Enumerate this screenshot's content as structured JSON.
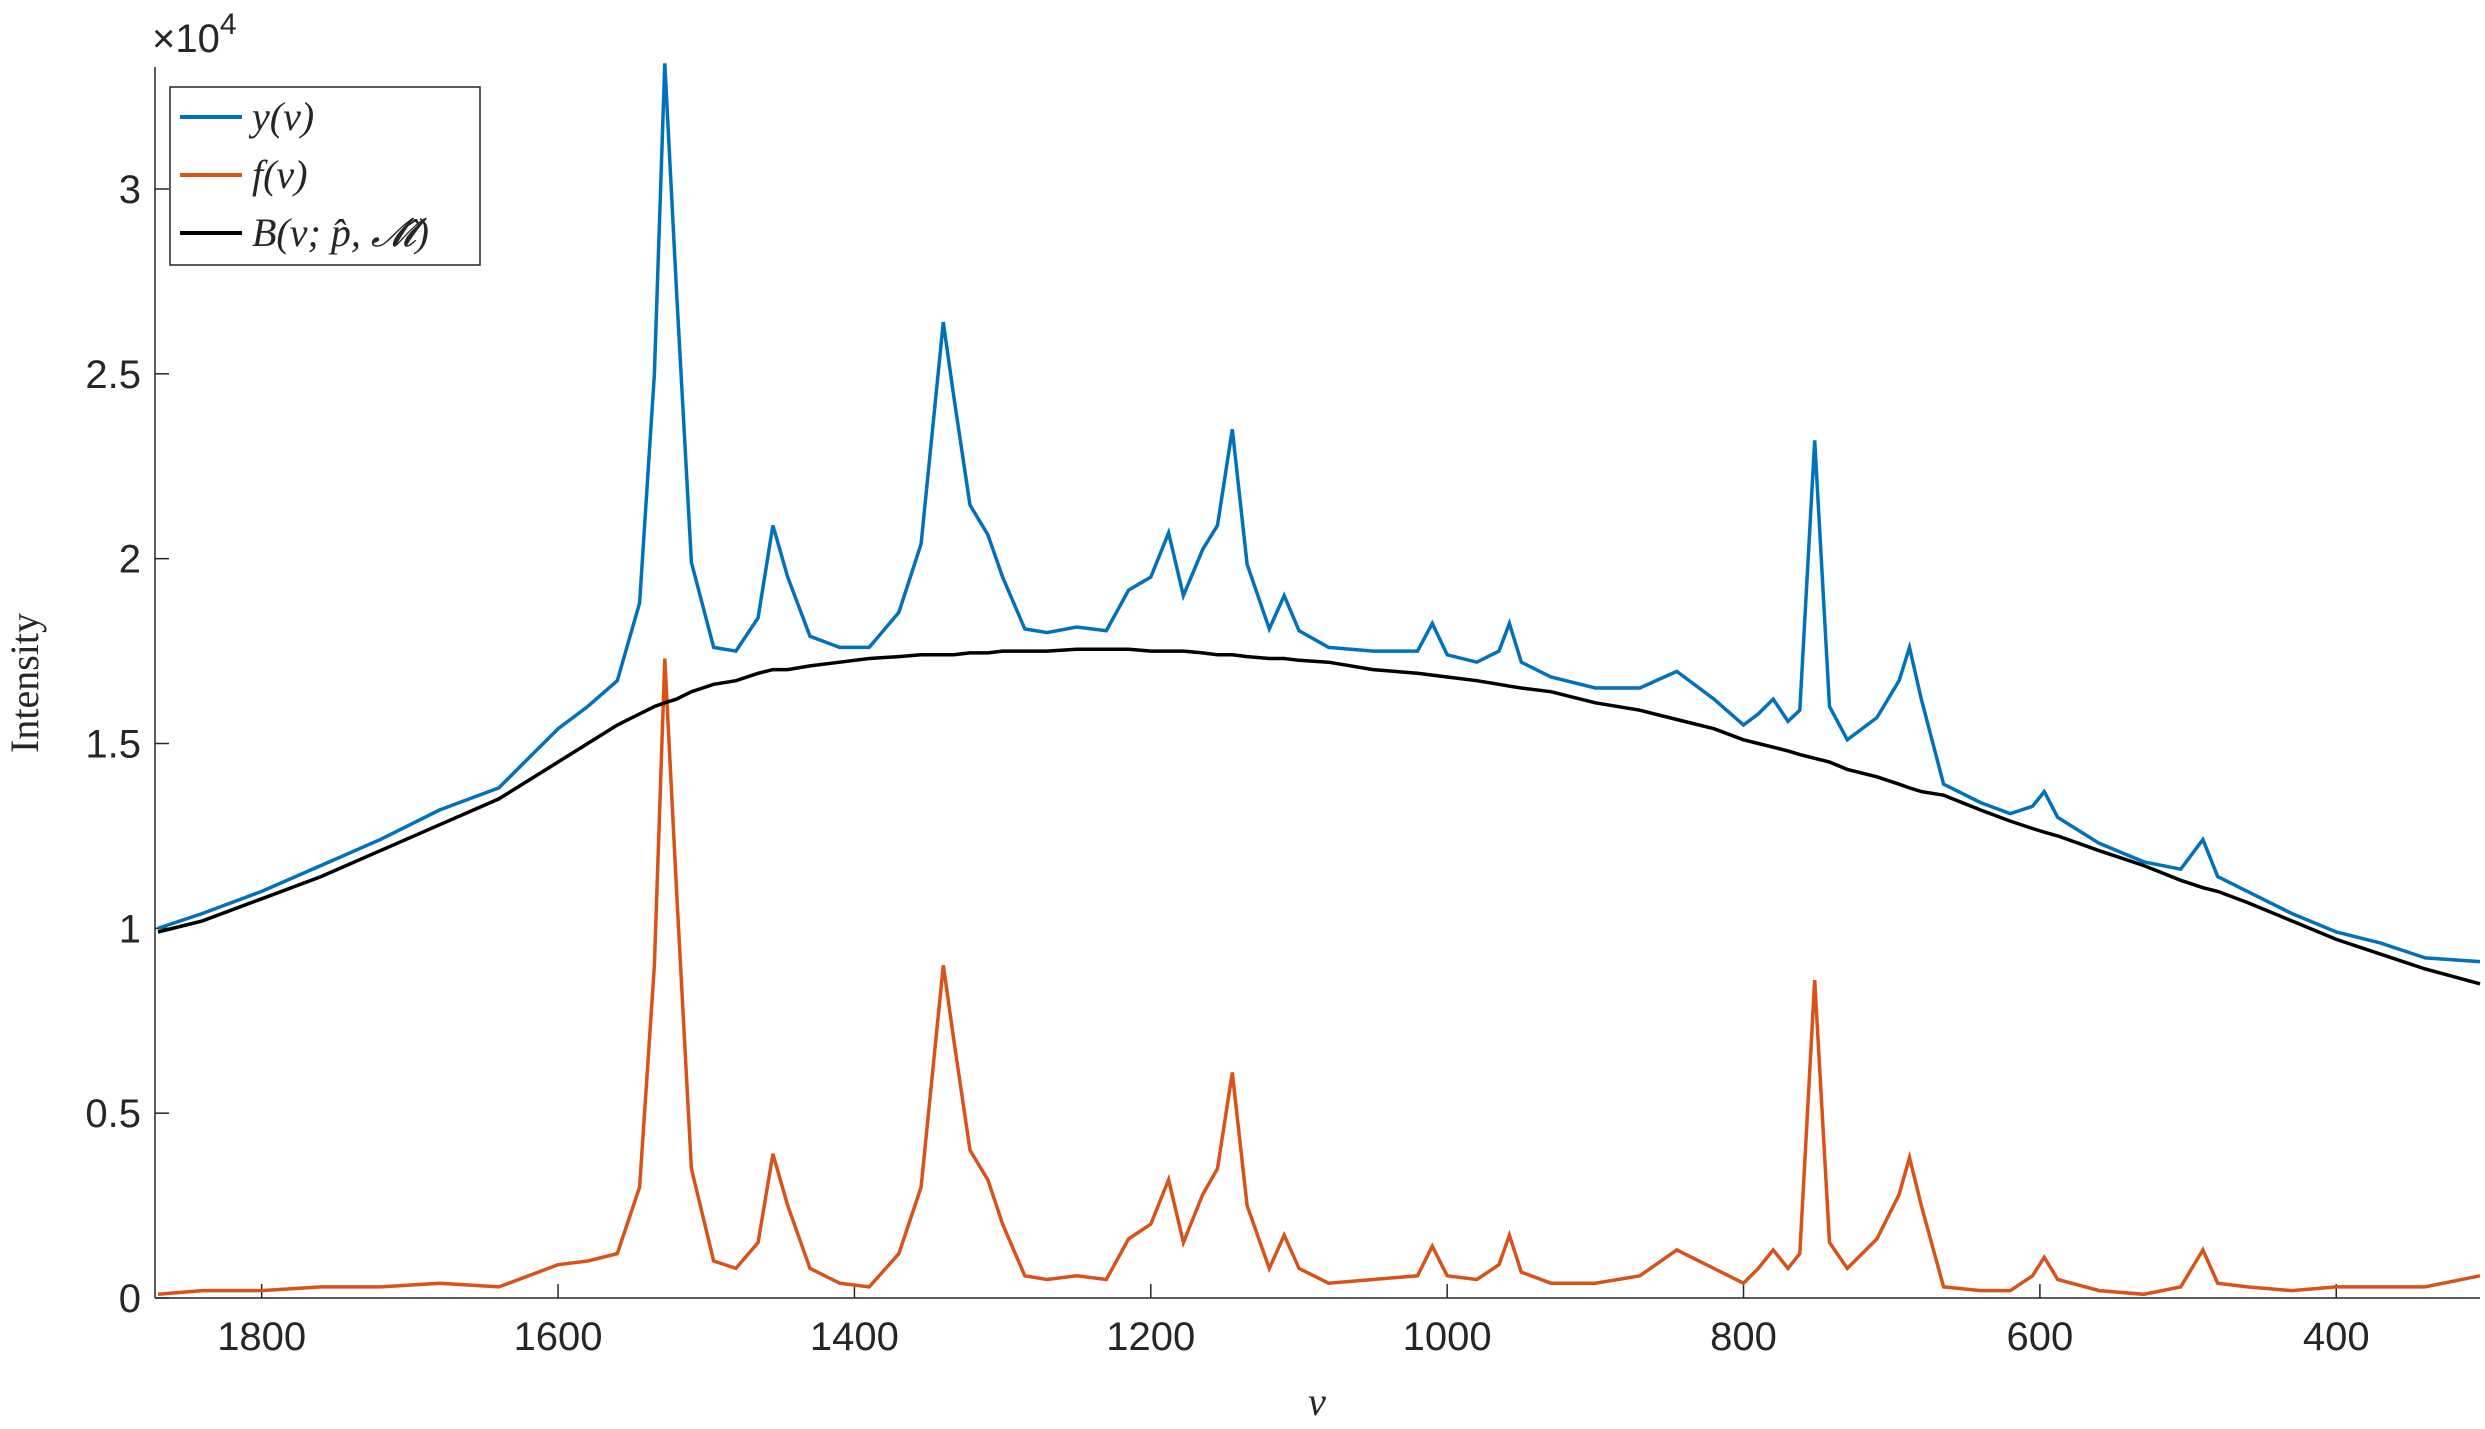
{
  "chart_data": {
    "type": "line",
    "xlabel": "ν",
    "ylabel": "Intensity",
    "y_multiplier": "×10",
    "y_multiplier_exponent": "4",
    "xlim": [
      1872,
      303
    ],
    "xticks": [
      1800,
      1600,
      1400,
      1200,
      1000,
      800,
      600,
      400
    ],
    "ylim": [
      0,
      3.33
    ],
    "yticks": [
      0,
      0.5,
      1,
      1.5,
      2,
      2.5,
      3
    ],
    "legend": "upper left",
    "x": [
      1870,
      1840,
      1800,
      1760,
      1720,
      1680,
      1640,
      1600,
      1580,
      1560,
      1545,
      1535,
      1528,
      1520,
      1510,
      1495,
      1480,
      1465,
      1455,
      1445,
      1430,
      1410,
      1390,
      1370,
      1355,
      1345,
      1340,
      1333,
      1322,
      1310,
      1300,
      1285,
      1270,
      1250,
      1230,
      1215,
      1200,
      1188,
      1178,
      1165,
      1155,
      1145,
      1135,
      1120,
      1110,
      1100,
      1080,
      1050,
      1020,
      1010,
      1000,
      980,
      965,
      958,
      950,
      930,
      900,
      870,
      845,
      820,
      800,
      790,
      780,
      770,
      762,
      752,
      742,
      730,
      710,
      695,
      688,
      680,
      665,
      640,
      620,
      605,
      597,
      588,
      560,
      530,
      505,
      490,
      480,
      460,
      430,
      400,
      370,
      340,
      303
    ],
    "series": [
      {
        "name": "y(ν)",
        "color": "#0072bd",
        "values": [
          1.0,
          1.04,
          1.1,
          1.17,
          1.24,
          1.32,
          1.38,
          1.54,
          1.6,
          1.67,
          1.88,
          2.5,
          3.34,
          2.72,
          1.99,
          1.76,
          1.75,
          1.84,
          2.09,
          1.95,
          1.79,
          1.76,
          1.76,
          1.855,
          2.04,
          2.44,
          2.64,
          2.44,
          2.145,
          2.065,
          1.95,
          1.81,
          1.8,
          1.815,
          1.805,
          1.915,
          1.95,
          2.07,
          1.9,
          2.025,
          2.09,
          2.35,
          1.985,
          1.81,
          1.9,
          1.805,
          1.76,
          1.75,
          1.75,
          1.825,
          1.74,
          1.72,
          1.75,
          1.825,
          1.72,
          1.68,
          1.65,
          1.65,
          1.695,
          1.62,
          1.55,
          1.58,
          1.62,
          1.56,
          1.59,
          2.32,
          1.6,
          1.51,
          1.57,
          1.67,
          1.76,
          1.62,
          1.39,
          1.34,
          1.31,
          1.33,
          1.37,
          1.3,
          1.23,
          1.18,
          1.16,
          1.24,
          1.14,
          1.1,
          1.04,
          0.99,
          0.96,
          0.92,
          0.91
        ]
      },
      {
        "name": "f(ν)",
        "color": "#d95319",
        "values": [
          0.01,
          0.02,
          0.02,
          0.03,
          0.03,
          0.04,
          0.03,
          0.09,
          0.1,
          0.12,
          0.3,
          0.9,
          1.73,
          1.1,
          0.35,
          0.1,
          0.08,
          0.15,
          0.39,
          0.25,
          0.08,
          0.04,
          0.03,
          0.12,
          0.3,
          0.7,
          0.9,
          0.7,
          0.4,
          0.32,
          0.2,
          0.06,
          0.05,
          0.06,
          0.05,
          0.16,
          0.2,
          0.32,
          0.15,
          0.28,
          0.35,
          0.61,
          0.25,
          0.08,
          0.17,
          0.08,
          0.04,
          0.05,
          0.06,
          0.14,
          0.06,
          0.05,
          0.09,
          0.17,
          0.07,
          0.04,
          0.04,
          0.06,
          0.13,
          0.08,
          0.04,
          0.08,
          0.13,
          0.08,
          0.12,
          0.86,
          0.15,
          0.08,
          0.16,
          0.28,
          0.38,
          0.25,
          0.03,
          0.02,
          0.02,
          0.06,
          0.11,
          0.05,
          0.02,
          0.01,
          0.03,
          0.13,
          0.04,
          0.03,
          0.02,
          0.03,
          0.03,
          0.03,
          0.06
        ]
      },
      {
        "name": "B(ν; p̂, 𝓜̂)",
        "color": "#000000",
        "values": [
          0.99,
          1.02,
          1.08,
          1.14,
          1.21,
          1.28,
          1.35,
          1.45,
          1.5,
          1.55,
          1.58,
          1.6,
          1.61,
          1.62,
          1.64,
          1.66,
          1.67,
          1.69,
          1.7,
          1.7,
          1.71,
          1.72,
          1.73,
          1.735,
          1.74,
          1.74,
          1.74,
          1.74,
          1.745,
          1.745,
          1.75,
          1.75,
          1.75,
          1.755,
          1.755,
          1.755,
          1.75,
          1.75,
          1.75,
          1.745,
          1.74,
          1.74,
          1.735,
          1.73,
          1.73,
          1.725,
          1.72,
          1.7,
          1.69,
          1.685,
          1.68,
          1.67,
          1.66,
          1.655,
          1.65,
          1.64,
          1.61,
          1.59,
          1.565,
          1.54,
          1.51,
          1.5,
          1.49,
          1.48,
          1.47,
          1.46,
          1.45,
          1.43,
          1.41,
          1.39,
          1.38,
          1.37,
          1.36,
          1.32,
          1.29,
          1.27,
          1.26,
          1.25,
          1.21,
          1.17,
          1.13,
          1.11,
          1.1,
          1.07,
          1.02,
          0.97,
          0.93,
          0.89,
          0.85
        ]
      }
    ]
  }
}
